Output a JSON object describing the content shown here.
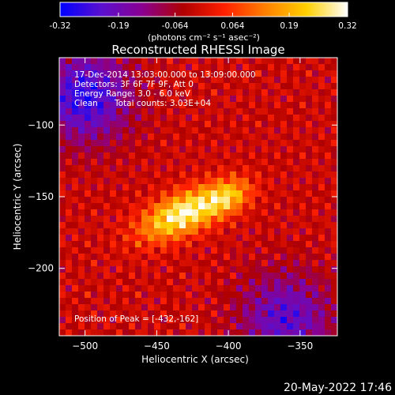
{
  "colorbar": {
    "ticks": [
      "-0.32",
      "-0.19",
      "-0.064",
      "0.064",
      "0.19",
      "0.32"
    ],
    "tick_values": [
      -0.32,
      -0.19,
      -0.064,
      0.064,
      0.19,
      0.32
    ],
    "range": [
      -0.32,
      0.32
    ],
    "unit_label": "(photons cm⁻² s⁻¹ asec⁻²)",
    "colormap": [
      "#0000ff",
      "#5a10d0",
      "#8a0090",
      "#b00000",
      "#ff2000",
      "#ff8000",
      "#ffd000",
      "#ffffff"
    ]
  },
  "chart_data": {
    "type": "heatmap",
    "title": "Reconstructed RHESSI Image",
    "xlabel": "Heliocentric X (arcsec)",
    "ylabel": "Heliocentric Y (arcsec)",
    "xlim": [
      -518,
      -324
    ],
    "ylim": [
      -247,
      -53
    ],
    "xticks": [
      -500,
      -450,
      -400,
      -350
    ],
    "yticks": [
      -100,
      -150,
      -200
    ],
    "xtick_labels": [
      "−500",
      "−450",
      "−400",
      "−350"
    ],
    "ytick_labels": [
      "−100",
      "−150",
      "−200"
    ],
    "annotations": {
      "time": "17-Dec-2014 13:03:00.000 to 13:09:00.000",
      "detectors": "Detectors: 3F 6F 7F 9F, Att 0",
      "energy": "Energy Range: 3.0 - 6.0 keV",
      "method": "Clean",
      "counts": "Total counts: 3.03E+04",
      "peak": "Position of Peak = [-432,-162]"
    },
    "peak": {
      "x": -432,
      "y": -162,
      "value": 0.32
    },
    "sources": [
      {
        "x": -432,
        "y": -162,
        "sx": 22,
        "sy": 10,
        "amp": 0.32
      },
      {
        "x": -400,
        "y": -150,
        "sx": 12,
        "sy": 8,
        "amp": 0.18
      }
    ],
    "background_level": -0.02,
    "negative_regions": [
      {
        "x": -500,
        "y": -80,
        "amp": -0.25
      },
      {
        "x": -360,
        "y": -235,
        "amp": -0.2
      }
    ],
    "grid": false
  },
  "footer": {
    "date": "20-May-2022 17:46"
  }
}
